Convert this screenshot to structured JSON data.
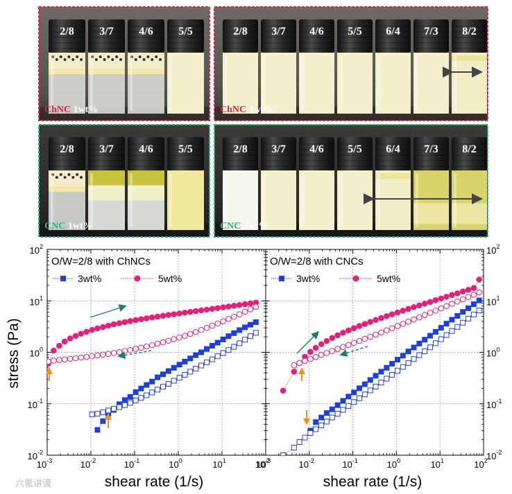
{
  "photos": [
    {
      "id": "chnc1",
      "label_material": "ChNC",
      "label_conc": "1wt%",
      "border_color": "#d8263e",
      "vials": [
        {
          "ratio": "2/8",
          "state": "separated"
        },
        {
          "ratio": "3/7",
          "state": "separated"
        },
        {
          "ratio": "4/6",
          "state": "separated"
        },
        {
          "ratio": "5/5",
          "state": "cream"
        }
      ]
    },
    {
      "id": "chnc3",
      "label_material": "ChNC",
      "label_conc": "3wt%",
      "border_color": "#d8263e",
      "vials": [
        {
          "ratio": "2/8",
          "state": "cream"
        },
        {
          "ratio": "3/7",
          "state": "cream"
        },
        {
          "ratio": "4/6",
          "state": "cream"
        },
        {
          "ratio": "5/5",
          "state": "cream"
        },
        {
          "ratio": "6/4",
          "state": "cream"
        },
        {
          "ratio": "7/3",
          "state": "cream"
        },
        {
          "ratio": "8/2",
          "state": "gel"
        }
      ]
    },
    {
      "id": "cnc1",
      "label_material": "CNC",
      "label_conc": "1wt%",
      "border_color": "#2bb673",
      "vials": [
        {
          "ratio": "2/8",
          "state": "separated"
        },
        {
          "ratio": "3/7",
          "state": "oily"
        },
        {
          "ratio": "4/6",
          "state": "oily"
        },
        {
          "ratio": "5/5",
          "state": "yellowcream"
        }
      ]
    },
    {
      "id": "cnc3",
      "label_material": "CNC",
      "label_conc": "3wt%",
      "border_color": "#2bb673",
      "vials": [
        {
          "ratio": "2/8",
          "state": "white"
        },
        {
          "ratio": "3/7",
          "state": "cream"
        },
        {
          "ratio": "4/6",
          "state": "cream"
        },
        {
          "ratio": "5/5",
          "state": "cream"
        },
        {
          "ratio": "6/4",
          "state": "gel"
        },
        {
          "ratio": "7/3",
          "state": "yellowgel"
        },
        {
          "ratio": "8/2",
          "state": "yellowgel"
        }
      ]
    }
  ],
  "y_axis_label": "stress (Pa)",
  "x_axis_label": "shear rate (1/s)",
  "x_ticks": [
    {
      "base": "10",
      "exp": "-3"
    },
    {
      "base": "10",
      "exp": "-2"
    },
    {
      "base": "10",
      "exp": "-1"
    },
    {
      "base": "10",
      "exp": "0"
    },
    {
      "base": "10",
      "exp": "1"
    },
    {
      "base": "10",
      "exp": "2"
    }
  ],
  "y_ticks": [
    {
      "base": "10",
      "exp": "-2"
    },
    {
      "base": "10",
      "exp": "-1"
    },
    {
      "base": "10",
      "exp": "0"
    },
    {
      "base": "10",
      "exp": "1"
    },
    {
      "base": "10",
      "exp": "2"
    }
  ],
  "watermark": "六氪讲谟",
  "colors": {
    "blue": "#1f3fd8",
    "magenta": "#e0227a",
    "orange": "#f5901e",
    "teal": "#1f7a78"
  },
  "chart_data": [
    {
      "type": "scatter",
      "title": "O/W=2/8 with ChNCs",
      "xlabel": "shear rate (1/s)",
      "ylabel": "stress (Pa)",
      "xscale": "log",
      "yscale": "log",
      "xlim": [
        0.001,
        100
      ],
      "ylim": [
        0.01,
        100
      ],
      "legend": [
        "3wt%",
        "5wt%"
      ],
      "series": [
        {
          "name": "3wt% up",
          "color": "blue",
          "filled": true,
          "x": [
            0.0141,
            0.0189,
            0.0251,
            0.0335,
            0.0447,
            0.0596,
            0.0794,
            0.106,
            0.141,
            0.188,
            0.251,
            0.335,
            0.447,
            0.596,
            0.794,
            1.06,
            1.41,
            1.88,
            2.51,
            3.35,
            4.47,
            5.96,
            7.94,
            10.6,
            14.1,
            18.8,
            25.1,
            33.5,
            44.7,
            59.6
          ],
          "y": [
            0.031,
            0.046,
            0.064,
            0.076,
            0.098,
            0.118,
            0.136,
            0.168,
            0.198,
            0.232,
            0.27,
            0.326,
            0.374,
            0.432,
            0.5,
            0.576,
            0.66,
            0.76,
            0.88,
            1.0,
            1.16,
            1.34,
            1.54,
            1.78,
            2.06,
            2.36,
            2.7,
            3.06,
            3.44,
            3.86
          ]
        },
        {
          "name": "3wt% down",
          "color": "blue",
          "filled": false,
          "x": [
            0.0106,
            0.0141,
            0.0189,
            0.0251,
            0.0335,
            0.0447,
            0.0596,
            0.0794,
            0.106,
            0.141,
            0.188,
            0.251,
            0.335,
            0.447,
            0.596,
            0.794,
            1.06,
            1.41,
            1.88,
            2.51,
            3.35,
            4.47,
            5.96,
            7.94,
            10.6,
            14.1,
            18.8,
            25.1,
            33.5,
            44.7,
            59.6
          ],
          "y": [
            0.062,
            0.064,
            0.068,
            0.074,
            0.08,
            0.086,
            0.094,
            0.104,
            0.116,
            0.13,
            0.146,
            0.166,
            0.188,
            0.214,
            0.244,
            0.28,
            0.32,
            0.366,
            0.42,
            0.48,
            0.554,
            0.636,
            0.73,
            0.84,
            0.966,
            1.11,
            1.28,
            1.5,
            1.76,
            2.06,
            2.4
          ]
        },
        {
          "name": "5wt% up",
          "color": "magenta",
          "filled": true,
          "x": [
            0.00106,
            0.00141,
            0.00189,
            0.00251,
            0.00335,
            0.00447,
            0.00596,
            0.00794,
            0.0106,
            0.0141,
            0.0189,
            0.0251,
            0.0335,
            0.0447,
            0.0596,
            0.0794,
            0.106,
            0.141,
            0.188,
            0.251,
            0.335,
            0.447,
            0.596,
            0.794,
            1.06,
            1.41,
            1.88,
            2.51,
            3.35,
            4.47,
            5.96,
            7.94,
            10.6,
            14.1,
            18.8,
            25.1,
            33.5,
            44.7,
            59.6
          ],
          "y": [
            0.6,
            1.08,
            1.34,
            1.62,
            1.86,
            2.08,
            2.3,
            2.5,
            2.72,
            2.92,
            3.1,
            3.3,
            3.5,
            3.68,
            3.86,
            4.04,
            4.22,
            4.4,
            4.58,
            4.76,
            4.94,
            5.12,
            5.32,
            5.5,
            5.7,
            5.9,
            6.1,
            6.32,
            6.54,
            6.76,
            7.0,
            7.24,
            7.5,
            7.76,
            8.04,
            8.32,
            8.62,
            8.92,
            9.24
          ]
        },
        {
          "name": "5wt% down",
          "color": "magenta",
          "filled": false,
          "x": [
            0.00106,
            0.00141,
            0.00189,
            0.00251,
            0.00335,
            0.00447,
            0.00596,
            0.00794,
            0.0106,
            0.0141,
            0.0189,
            0.0251,
            0.0335,
            0.0447,
            0.0596,
            0.0794,
            0.106,
            0.141,
            0.188,
            0.251,
            0.335,
            0.447,
            0.596,
            0.794,
            1.06,
            1.41,
            1.88,
            2.51,
            3.35,
            4.47,
            5.96,
            7.94,
            10.6,
            14.1,
            18.8,
            25.1,
            33.5,
            44.7,
            59.6
          ],
          "y": [
            0.66,
            0.69,
            0.71,
            0.73,
            0.75,
            0.77,
            0.79,
            0.81,
            0.84,
            0.87,
            0.9,
            0.93,
            0.97,
            1.01,
            1.06,
            1.11,
            1.17,
            1.23,
            1.3,
            1.38,
            1.47,
            1.57,
            1.68,
            1.8,
            1.94,
            2.1,
            2.28,
            2.48,
            2.72,
            2.98,
            3.28,
            3.62,
            4.0,
            4.44,
            4.94,
            5.5,
            6.14,
            6.86,
            7.66
          ]
        }
      ],
      "annotations": [
        "teal solid arrow up-right (increasing shear)",
        "teal dashed arrow down-left (decreasing shear)",
        "orange arrows marking stress onset"
      ]
    },
    {
      "type": "scatter",
      "title": "O/W=2/8 with CNCs",
      "xlabel": "shear rate (1/s)",
      "ylabel": "stress (Pa)",
      "xscale": "log",
      "yscale": "log",
      "xlim": [
        0.001,
        100
      ],
      "ylim": [
        0.01,
        100
      ],
      "legend": [
        "3wt%",
        "5wt%"
      ],
      "series": [
        {
          "name": "3wt% up",
          "color": "blue",
          "filled": true,
          "x": [
            0.0106,
            0.0141,
            0.0189,
            0.0251,
            0.0335,
            0.0447,
            0.0596,
            0.0794,
            0.106,
            0.141,
            0.188,
            0.251,
            0.335,
            0.447,
            0.596,
            0.794,
            1.06,
            1.41,
            1.88,
            2.51,
            3.35,
            4.47,
            5.96,
            7.94,
            10.6,
            14.1,
            18.8,
            25.1,
            33.5,
            44.7,
            59.6,
            79.4
          ],
          "y": [
            0.03,
            0.044,
            0.054,
            0.066,
            0.078,
            0.094,
            0.114,
            0.138,
            0.166,
            0.2,
            0.24,
            0.29,
            0.35,
            0.42,
            0.5,
            0.6,
            0.72,
            0.86,
            1.04,
            1.24,
            1.48,
            1.76,
            2.1,
            2.5,
            3.0,
            3.6,
            4.3,
            5.1,
            6.1,
            7.2,
            8.6,
            10.2
          ]
        },
        {
          "name": "3wt% down",
          "color": "blue",
          "filled": false,
          "x": [
            0.00251,
            0.00447,
            0.00596,
            0.00794,
            0.0106,
            0.0141,
            0.0189,
            0.0251,
            0.0335,
            0.0447,
            0.0596,
            0.0794,
            0.106,
            0.141,
            0.188,
            0.251,
            0.335,
            0.447,
            0.596,
            0.794,
            1.06,
            1.41,
            1.88,
            2.51,
            3.35,
            4.47,
            5.96,
            7.94,
            10.6,
            14.1,
            18.8,
            25.1,
            33.5,
            44.7,
            59.6,
            79.4
          ],
          "y": [
            0.01,
            0.014,
            0.018,
            0.022,
            0.027,
            0.032,
            0.038,
            0.045,
            0.054,
            0.064,
            0.076,
            0.09,
            0.108,
            0.128,
            0.152,
            0.182,
            0.216,
            0.258,
            0.308,
            0.366,
            0.436,
            0.52,
            0.62,
            0.74,
            0.88,
            1.05,
            1.25,
            1.5,
            1.8,
            2.16,
            2.6,
            3.12,
            3.76,
            4.52,
            5.44,
            6.5
          ]
        },
        {
          "name": "5wt% up",
          "color": "magenta",
          "filled": true,
          "x": [
            0.00251,
            0.00447,
            0.00596,
            0.00794,
            0.0106,
            0.0141,
            0.0189,
            0.0251,
            0.0335,
            0.0447,
            0.0596,
            0.0794,
            0.106,
            0.141,
            0.188,
            0.251,
            0.335,
            0.447,
            0.596,
            0.794,
            1.06,
            1.41,
            1.88,
            2.51,
            3.35,
            4.47,
            5.96,
            7.94,
            10.6,
            14.1,
            18.8,
            25.1,
            33.5,
            44.7,
            59.6,
            79.4
          ],
          "y": [
            0.18,
            0.42,
            0.62,
            0.82,
            1.02,
            1.22,
            1.44,
            1.66,
            1.9,
            2.14,
            2.4,
            2.66,
            2.94,
            3.24,
            3.56,
            3.9,
            4.26,
            4.64,
            5.04,
            5.48,
            5.94,
            6.44,
            6.98,
            7.54,
            8.16,
            8.82,
            9.52,
            10.3,
            11.1,
            12.0,
            13.0,
            14.0,
            15.2,
            16.4,
            17.8,
            26.0
          ]
        },
        {
          "name": "5wt% down",
          "color": "magenta",
          "filled": false,
          "x": [
            0.00447,
            0.00596,
            0.00794,
            0.0106,
            0.0141,
            0.0189,
            0.0251,
            0.0335,
            0.0447,
            0.0596,
            0.0794,
            0.106,
            0.141,
            0.188,
            0.251,
            0.335,
            0.447,
            0.596,
            0.794,
            1.06,
            1.41,
            1.88,
            2.51,
            3.35,
            4.47,
            5.96,
            7.94,
            10.6,
            14.1,
            18.8,
            25.1,
            33.5,
            44.7,
            59.6,
            79.4
          ],
          "y": [
            0.56,
            0.62,
            0.68,
            0.74,
            0.81,
            0.89,
            0.97,
            1.06,
            1.16,
            1.27,
            1.39,
            1.52,
            1.67,
            1.83,
            2.01,
            2.21,
            2.43,
            2.67,
            2.94,
            3.24,
            3.57,
            3.94,
            4.35,
            4.8,
            5.3,
            5.86,
            6.48,
            7.16,
            7.92,
            8.76,
            9.7,
            10.7,
            11.9,
            13.2,
            14.6
          ]
        }
      ],
      "annotations": [
        "teal solid arrow up-right (increasing shear)",
        "teal dashed arrow down-left (decreasing shear)",
        "orange arrows marking stress onset"
      ]
    }
  ]
}
